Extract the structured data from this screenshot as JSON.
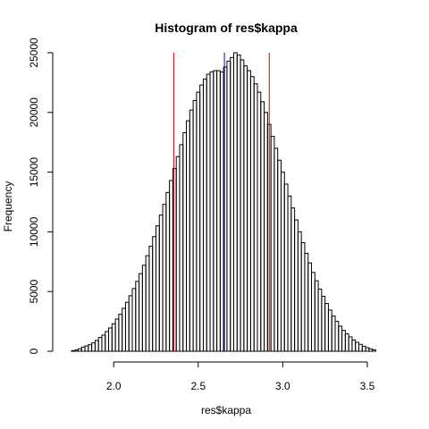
{
  "chart_data": {
    "type": "bar",
    "title": "Histogram of res$kappa",
    "xlabel": "res$kappa",
    "ylabel": "Frequency",
    "xlim": [
      1.65,
      3.68
    ],
    "ylim": [
      0,
      25000
    ],
    "x_ticks": [
      {
        "value": 2.0,
        "label": "2.0"
      },
      {
        "value": 2.5,
        "label": "2.5"
      },
      {
        "value": 3.0,
        "label": "3.0"
      },
      {
        "value": 3.5,
        "label": "3.5"
      }
    ],
    "y_ticks": [
      {
        "value": 0,
        "label": "0"
      },
      {
        "value": 5000,
        "label": "5000"
      },
      {
        "value": 10000,
        "label": "10000"
      },
      {
        "value": 15000,
        "label": "15000"
      },
      {
        "value": 20000,
        "label": "20000"
      },
      {
        "value": 25000,
        "label": "25000"
      }
    ],
    "bin_start": 1.75,
    "bin_width": 0.02,
    "counts": [
      50,
      100,
      200,
      350,
      450,
      550,
      700,
      900,
      1150,
      1350,
      1650,
      1950,
      2300,
      2700,
      3100,
      3600,
      4100,
      4650,
      5250,
      5850,
      6500,
      7200,
      8000,
      8800,
      9600,
      10500,
      11400,
      12300,
      13300,
      14300,
      15300,
      16300,
      17300,
      18300,
      19300,
      20200,
      21000,
      21700,
      22300,
      22800,
      23200,
      23400,
      23500,
      23500,
      23400,
      23800,
      24300,
      24600,
      25000,
      24800,
      24400,
      23900,
      23500,
      23000,
      22400,
      21700,
      20900,
      20000,
      19000,
      18000,
      17000,
      16000,
      15000,
      14000,
      13000,
      12000,
      11000,
      10000,
      9100,
      8200,
      7400,
      6600,
      5900,
      5200,
      4600,
      4000,
      3450,
      2950,
      2500,
      2100,
      1750,
      1450,
      1200,
      950,
      750,
      580,
      420,
      300,
      200,
      120
    ],
    "vertical_lines": [
      {
        "x": 2.355,
        "color": "#cc0000"
      },
      {
        "x": 2.655,
        "color": "#0000cc"
      },
      {
        "x": 2.92,
        "color": "#cc0000"
      }
    ]
  }
}
